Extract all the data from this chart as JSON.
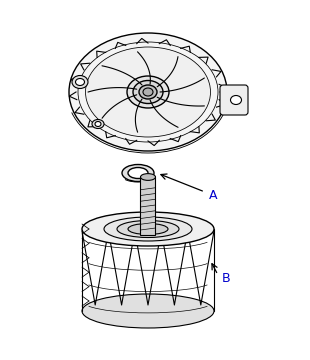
{
  "background_color": "#ffffff",
  "label_A": "A",
  "label_B": "B",
  "label_color": "#0000cc",
  "line_color": "#000000",
  "line_width": 0.8,
  "arrow_color": "#000000",
  "fig_width": 3.1,
  "fig_height": 3.6,
  "dpi": 100
}
